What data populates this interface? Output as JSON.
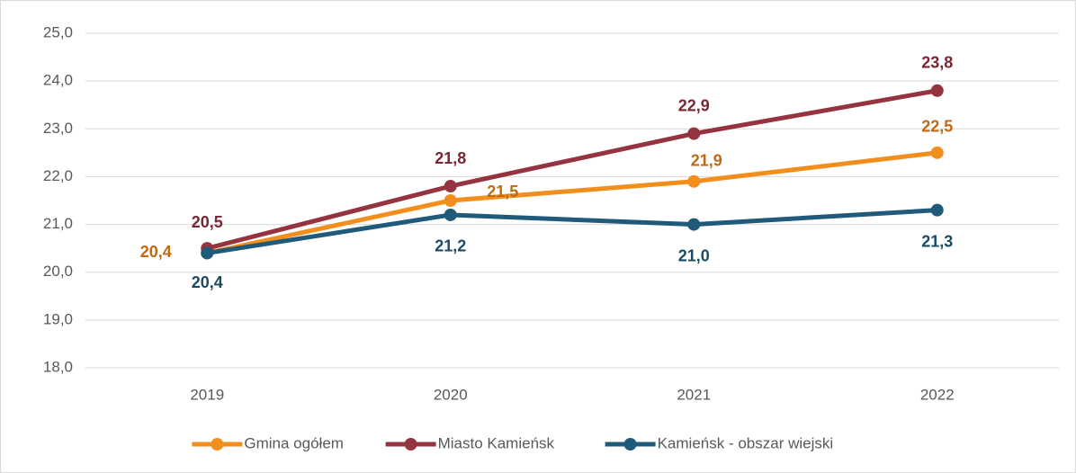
{
  "chart_data": {
    "type": "line",
    "categories": [
      "2019",
      "2020",
      "2021",
      "2022"
    ],
    "series": [
      {
        "name": "Gmina ogółem",
        "color": "#f28e1c",
        "label_color": "#bf6a12",
        "values": [
          20.4,
          21.5,
          21.9,
          22.5
        ],
        "value_labels": [
          "20,4",
          "21,5",
          "21,9",
          "22,5"
        ]
      },
      {
        "name": "Miasto Kamieńsk",
        "color": "#953440",
        "label_color": "#7a2533",
        "values": [
          20.5,
          21.8,
          22.9,
          23.8
        ],
        "value_labels": [
          "20,5",
          "21,8",
          "22,9",
          "23,8"
        ]
      },
      {
        "name": "Kamieńsk - obszar wiejski",
        "color": "#1f5a7b",
        "label_color": "#1b4a66",
        "values": [
          20.4,
          21.2,
          21.0,
          21.3
        ],
        "value_labels": [
          "20,4",
          "21,2",
          "21,0",
          "21,3"
        ]
      }
    ],
    "ylim": [
      18,
      25
    ],
    "yticks": [
      {
        "value": 18,
        "label": "18,0"
      },
      {
        "value": 19,
        "label": "19,0"
      },
      {
        "value": 20,
        "label": "20,0"
      },
      {
        "value": 21,
        "label": "21,0"
      },
      {
        "value": 22,
        "label": "22,0"
      },
      {
        "value": 23,
        "label": "23,0"
      },
      {
        "value": 24,
        "label": "24,0"
      },
      {
        "value": 25,
        "label": "25,0"
      }
    ],
    "grid": true
  }
}
